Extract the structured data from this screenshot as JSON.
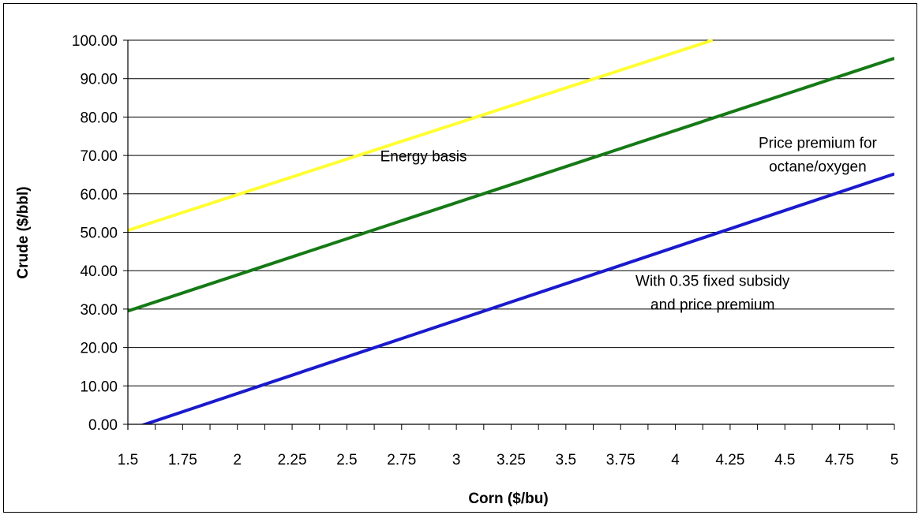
{
  "chart_data": {
    "type": "line",
    "title": "",
    "xlabel": "Corn ($/bu)",
    "ylabel": "Crude ($/bbl)",
    "xlim": [
      1.5,
      5
    ],
    "ylim": [
      0,
      100
    ],
    "grid": "horizontal",
    "x_ticks": [
      "1.5",
      "1.75",
      "2",
      "2.25",
      "2.5",
      "2.75",
      "3",
      "3.25",
      "3.5",
      "3.75",
      "4",
      "4.25",
      "4.5",
      "4.75",
      "5"
    ],
    "y_ticks": [
      "0.00",
      "10.00",
      "20.00",
      "30.00",
      "40.00",
      "50.00",
      "60.00",
      "70.00",
      "80.00",
      "90.00",
      "100.00"
    ],
    "series": [
      {
        "color": "#ffff33",
        "x": [
          1.5,
          4.17
        ],
        "y": [
          50.5,
          100
        ]
      },
      {
        "color": "#157a15",
        "x": [
          1.5,
          5
        ],
        "y": [
          29.5,
          95.3
        ]
      },
      {
        "color": "#1a1acc",
        "x": [
          1.5,
          5
        ],
        "y": [
          -1.5,
          65.2
        ]
      }
    ],
    "annotations": [
      {
        "lines": [
          "Energy basis"
        ],
        "x": 2.85,
        "y": 68.5
      },
      {
        "lines": [
          "Price premium for",
          "octane/oxygen"
        ],
        "x": 4.65,
        "y": 72
      },
      {
        "lines": [
          "With 0.35 fixed subsidy",
          "and price premium"
        ],
        "x": 4.17,
        "y": 36
      }
    ]
  }
}
